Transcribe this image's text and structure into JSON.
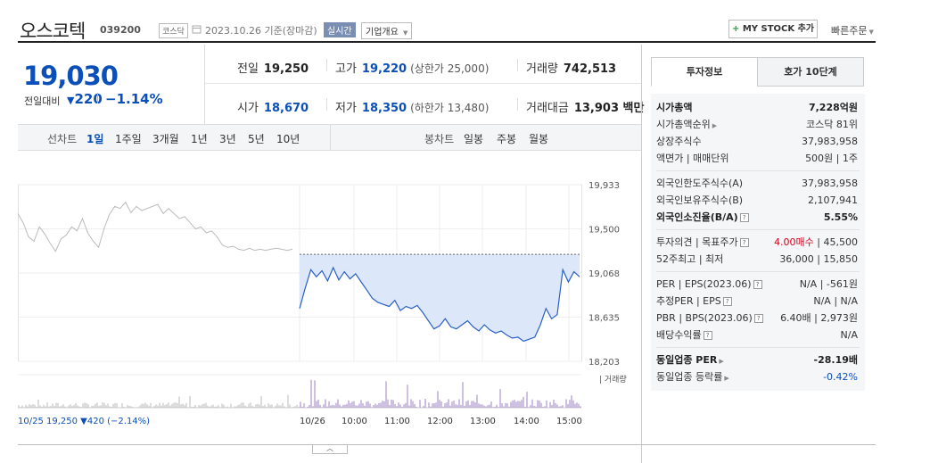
{
  "header": {
    "name": "오스코텍",
    "code": "039200",
    "market": "코스닥",
    "date": "2023.10.26 기준(장마감)",
    "realtime": "실시간",
    "corp_overview": "기업개요",
    "mystock_label": "MY STOCK 추가",
    "quick_order": "빠른주문"
  },
  "price": {
    "current": "19,030",
    "change_label": "전일대비",
    "change_value": "220",
    "change_pct": "−1.14%"
  },
  "stats": {
    "prev_label": "전일",
    "prev": "19,250",
    "high_label": "고가",
    "high": "19,220",
    "upper_limit": "(상한가 25,000)",
    "volume_label": "거래량",
    "volume": "742,513",
    "open_label": "시가",
    "open": "18,670",
    "low_label": "저가",
    "low": "18,350",
    "lower_limit": "(하한가 13,480)",
    "amount_label": "거래대금",
    "amount": "13,903 백만"
  },
  "toolbar": {
    "line_chart": "선차트",
    "periods": [
      "1일",
      "1주일",
      "3개월",
      "1년",
      "3년",
      "5년",
      "10년"
    ],
    "candle_chart": "봉차트",
    "candles": [
      "일봉",
      "주봉",
      "월봉"
    ]
  },
  "chart_data": {
    "type": "line",
    "y_ticks": [
      "19,933",
      "19,500",
      "19,068",
      "18,635",
      "18,203"
    ],
    "ylim": [
      18203,
      19933
    ],
    "x_ticks": [
      "10/26",
      "10:00",
      "11:00",
      "12:00",
      "13:00",
      "14:00",
      "15:00"
    ],
    "volume_label": "거래량",
    "prev_day_legend": "10/25 19,250 ▼420 (−2.14%)",
    "prev_close": 19250,
    "series": [
      {
        "values": [
          19650,
          19560,
          19420,
          19380,
          19520,
          19450,
          19360,
          19280,
          19400,
          19440,
          19520,
          19480,
          19600,
          19460,
          19380,
          19320,
          19500,
          19640,
          19720,
          19700,
          19760,
          19660,
          19720,
          19680,
          19700,
          19720,
          19740,
          19650,
          19700,
          19650,
          19600,
          19620,
          19560,
          19500,
          19520,
          19460,
          19480,
          19420,
          19340,
          19320,
          19330,
          19300,
          19290,
          19310,
          19290,
          19300,
          19290,
          19300,
          19310,
          19300,
          19290,
          19300
        ]
      },
      {
        "values": [
          18720,
          18920,
          19100,
          19030,
          19090,
          18990,
          19120,
          19000,
          19080,
          19010,
          19060,
          18980,
          18900,
          18820,
          18780,
          18760,
          18740,
          18800,
          18700,
          18740,
          18720,
          18750,
          18680,
          18600,
          18520,
          18550,
          18620,
          18540,
          18520,
          18560,
          18600,
          18540,
          18500,
          18560,
          18510,
          18480,
          18500,
          18460,
          18430,
          18440,
          18400,
          18420,
          18440,
          18560,
          18720,
          18620,
          18660,
          19100,
          18980,
          19080,
          19030
        ]
      }
    ]
  },
  "info_tabs": [
    "투자정보",
    "호가 10단계"
  ],
  "info": {
    "g1": [
      {
        "k": "시가총액",
        "v": "7,228억원"
      },
      {
        "k": "시가총액순위",
        "v": "코스닥 81위"
      },
      {
        "k": "상장주식수",
        "v": "37,983,958"
      },
      {
        "k": "액면가 | 매매단위",
        "v": "500원 | 1주"
      }
    ],
    "g2": [
      {
        "k": "외국인한도주식수(A)",
        "v": "37,983,958"
      },
      {
        "k": "외국인보유주식수(B)",
        "v": "2,107,941"
      },
      {
        "k": "외국인소진율(B/A)",
        "v": "5.55%"
      }
    ],
    "g3": [
      {
        "k": "투자의견 | 목표주가",
        "v1": "4.00매수",
        "v2": "| 45,500"
      },
      {
        "k": "52주최고 | 최저",
        "v": "36,000 | 15,850"
      }
    ],
    "g4": [
      {
        "k": "PER | EPS(2023.06)",
        "v": "N/A | -561원"
      },
      {
        "k": "추정PER | EPS",
        "v": "N/A | N/A"
      },
      {
        "k": "PBR | BPS(2023.06)",
        "v": "6.40배 | 2,973원"
      },
      {
        "k": "배당수익률",
        "v": "N/A"
      }
    ],
    "g5": [
      {
        "k": "동일업종 PER",
        "v": "-28.19배"
      },
      {
        "k": "동일업종 등락률",
        "v": "-0.42%"
      }
    ]
  }
}
